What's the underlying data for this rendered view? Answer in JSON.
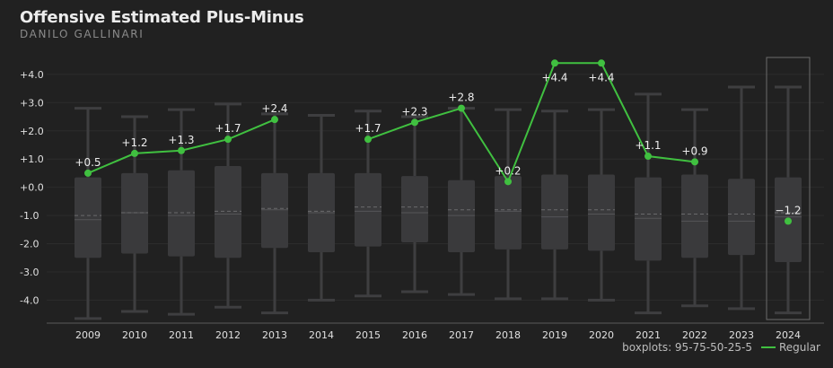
{
  "header": {
    "title": "Offensive Estimated Plus-Minus",
    "subtitle": "DANILO GALLINARI"
  },
  "footer": {
    "boxplot_note": "boxplots: 95-75-50-25-5",
    "legend_label": "Regular"
  },
  "colors": {
    "background": "#212121",
    "box": "#3a3a3c",
    "whisker": "#3e3e40",
    "line": "#40c040",
    "grid": "#2c2c2c",
    "text": "#e0e0e0"
  },
  "chart_data": {
    "type": "line",
    "title": "Offensive Estimated Plus-Minus",
    "subtitle": "DANILO GALLINARI",
    "ylim": [
      -4.75,
      4.6
    ],
    "yticks": [
      "-4.0",
      "-3.0",
      "-2.0",
      "-1.0",
      "+0.0",
      "+1.0",
      "+2.0",
      "+3.0",
      "+4.0"
    ],
    "ytick_values": [
      -4,
      -3,
      -2,
      -1,
      0,
      1,
      2,
      3,
      4
    ],
    "categories": [
      "2009",
      "2010",
      "2011",
      "2012",
      "2013",
      "2014",
      "2015",
      "2016",
      "2017",
      "2018",
      "2019",
      "2020",
      "2021",
      "2022",
      "2023",
      "2024"
    ],
    "highlight_category": "2024",
    "boxplots": [
      {
        "p5": -4.65,
        "p25": -2.5,
        "p50": -1.15,
        "p75": 0.35,
        "p95": 2.8,
        "mean": -1.0
      },
      {
        "p5": -4.4,
        "p25": -2.35,
        "p50": -0.9,
        "p75": 0.5,
        "p95": 2.5,
        "mean": -0.9
      },
      {
        "p5": -4.5,
        "p25": -2.45,
        "p50": -1.0,
        "p75": 0.6,
        "p95": 2.75,
        "mean": -0.9
      },
      {
        "p5": -4.25,
        "p25": -2.5,
        "p50": -0.95,
        "p75": 0.75,
        "p95": 2.95,
        "mean": -0.85
      },
      {
        "p5": -4.45,
        "p25": -2.15,
        "p50": -0.8,
        "p75": 0.5,
        "p95": 2.6,
        "mean": -0.75
      },
      {
        "p5": -4.0,
        "p25": -2.3,
        "p50": -0.9,
        "p75": 0.5,
        "p95": 2.55,
        "mean": -0.85
      },
      {
        "p5": -3.85,
        "p25": -2.1,
        "p50": -0.85,
        "p75": 0.5,
        "p95": 2.7,
        "mean": -0.7
      },
      {
        "p5": -3.7,
        "p25": -1.95,
        "p50": -0.9,
        "p75": 0.4,
        "p95": 2.5,
        "mean": -0.7
      },
      {
        "p5": -3.8,
        "p25": -2.3,
        "p50": -1.0,
        "p75": 0.25,
        "p95": 2.8,
        "mean": -0.8
      },
      {
        "p5": -3.95,
        "p25": -2.2,
        "p50": -0.85,
        "p75": 0.4,
        "p95": 2.75,
        "mean": -0.8
      },
      {
        "p5": -3.95,
        "p25": -2.2,
        "p50": -1.05,
        "p75": 0.45,
        "p95": 2.7,
        "mean": -0.8
      },
      {
        "p5": -4.0,
        "p25": -2.25,
        "p50": -0.95,
        "p75": 0.45,
        "p95": 2.75,
        "mean": -0.8
      },
      {
        "p5": -4.45,
        "p25": -2.6,
        "p50": -1.1,
        "p75": 0.35,
        "p95": 3.3,
        "mean": -0.95
      },
      {
        "p5": -4.2,
        "p25": -2.5,
        "p50": -1.2,
        "p75": 0.45,
        "p95": 2.75,
        "mean": -0.95
      },
      {
        "p5": -4.3,
        "p25": -2.4,
        "p50": -1.2,
        "p75": 0.3,
        "p95": 3.55,
        "mean": -0.95
      },
      {
        "p5": -4.45,
        "p25": -2.65,
        "p50": -1.05,
        "p75": 0.35,
        "p95": 3.55,
        "mean": -0.9
      }
    ],
    "series": [
      {
        "name": "Regular",
        "values": [
          0.5,
          1.2,
          1.3,
          1.7,
          2.4,
          null,
          1.7,
          2.3,
          2.8,
          0.2,
          4.4,
          4.4,
          1.1,
          0.9,
          null,
          -1.2
        ],
        "labels": [
          "+0.5",
          "+1.2",
          "+1.3",
          "+1.7",
          "+2.4",
          "",
          "+1.7",
          "+2.3",
          "+2.8",
          "+0.2",
          "+4.4",
          "+4.4",
          "+1.1",
          "+0.9",
          "",
          "−1.2"
        ]
      }
    ]
  }
}
